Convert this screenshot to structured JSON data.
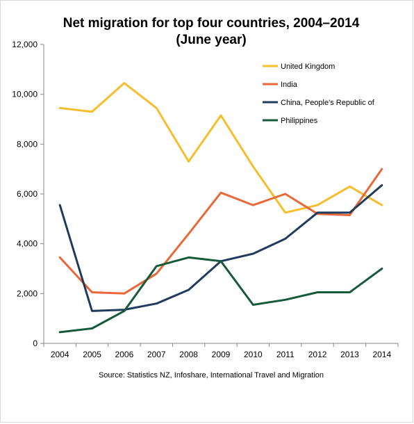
{
  "chart_data": {
    "type": "line",
    "title": "Net migration for top four countries, 2004–2014",
    "subtitle": "(June year)",
    "xlabel": "",
    "ylabel": "",
    "x": [
      "2004",
      "2005",
      "2006",
      "2007",
      "2008",
      "2009",
      "2010",
      "2011",
      "2012",
      "2013",
      "2014"
    ],
    "ylim": [
      0,
      12000
    ],
    "yticks": [
      0,
      2000,
      4000,
      6000,
      8000,
      10000,
      12000
    ],
    "ytick_labels": [
      "0",
      "2,000",
      "4,000",
      "6,000",
      "8,000",
      "10,000",
      "12,000"
    ],
    "grid": false,
    "legend_position": "top-right",
    "series": [
      {
        "name": "United Kingdom",
        "color": "#F6BE2C",
        "values": [
          9450,
          9300,
          10450,
          9450,
          7300,
          9150,
          7100,
          5250,
          5550,
          6300,
          5550
        ]
      },
      {
        "name": "India",
        "color": "#E8683A",
        "values": [
          3450,
          2050,
          2000,
          2800,
          4400,
          6050,
          5550,
          6000,
          5200,
          5150,
          7000
        ]
      },
      {
        "name": "China, People's Republic of",
        "color": "#1F3B5E",
        "values": [
          5550,
          1300,
          1350,
          1600,
          2150,
          3300,
          3600,
          4200,
          5250,
          5250,
          6350
        ]
      },
      {
        "name": "Philippines",
        "color": "#165A3A",
        "values": [
          450,
          600,
          1300,
          3100,
          3450,
          3300,
          1550,
          1750,
          2050,
          2050,
          3000
        ]
      }
    ],
    "source": "Source: Statistics NZ, Infoshare, International Travel and Migration"
  }
}
